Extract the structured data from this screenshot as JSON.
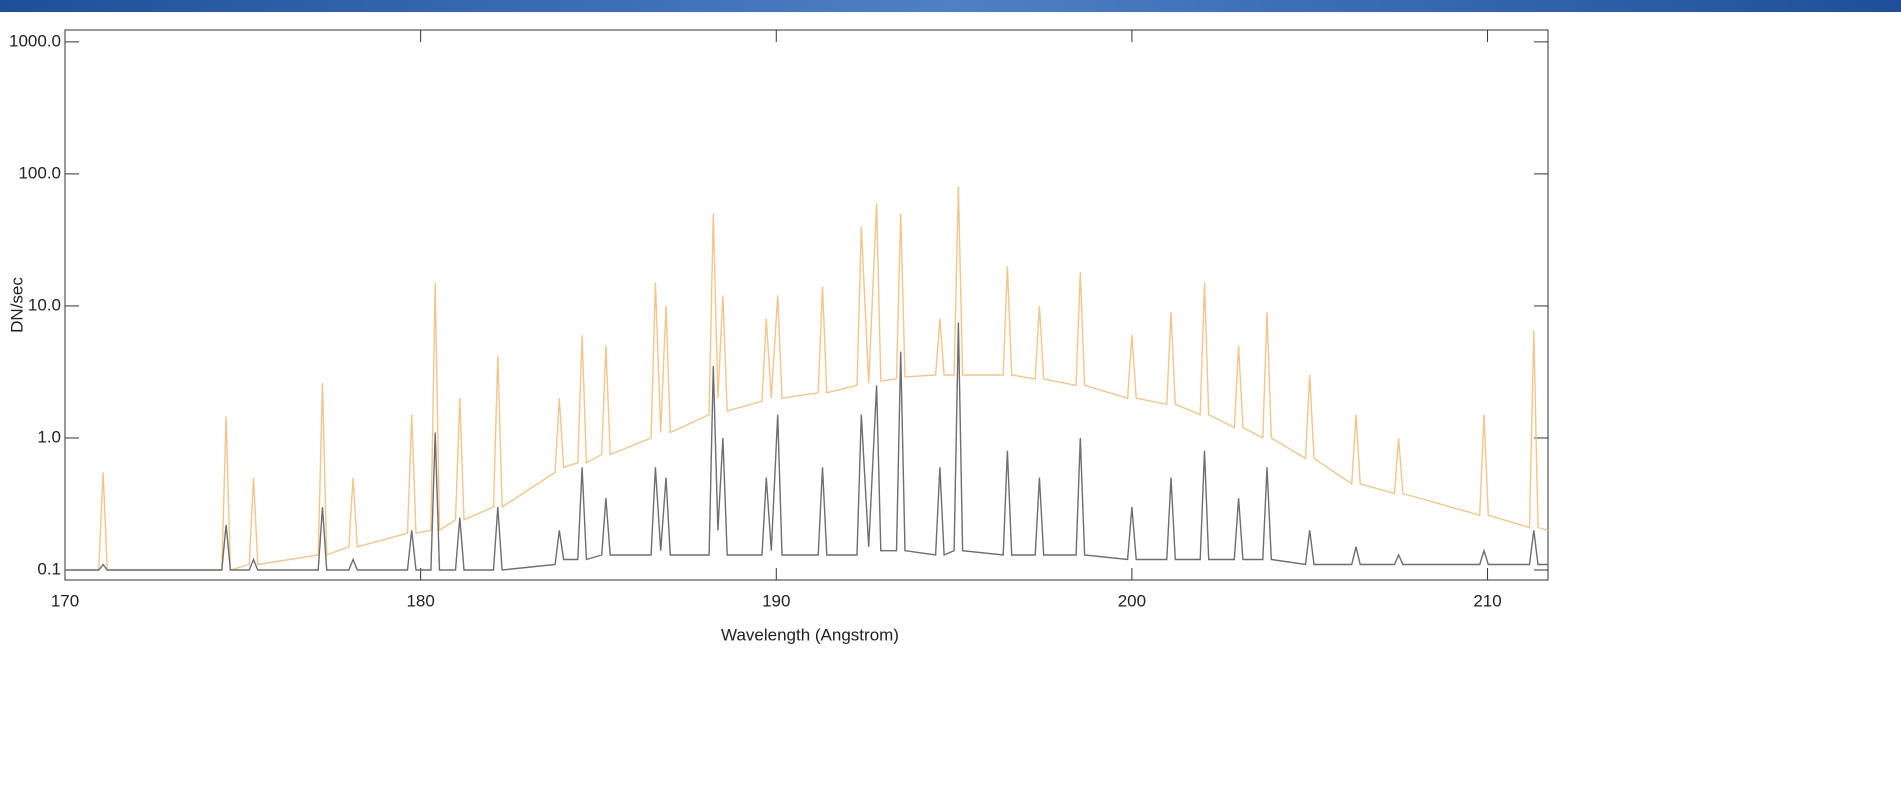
{
  "chart_data": {
    "type": "line",
    "xlabel": "Wavelength (Angstrom)",
    "ylabel": "DN/sec",
    "xlim": [
      170,
      211.7
    ],
    "ylim": [
      0.084,
      1230
    ],
    "ylog": true,
    "xticks": [
      170,
      180,
      190,
      200,
      210
    ],
    "yticks": [
      {
        "value": 0.1,
        "label": "0.1"
      },
      {
        "value": 1,
        "label": "1.0"
      },
      {
        "value": 10,
        "label": "10.0"
      },
      {
        "value": 100,
        "label": "100.0"
      },
      {
        "value": 1000,
        "label": "1000.0"
      }
    ],
    "x": [
      170,
      170.95,
      171.07,
      171.19,
      174.41,
      174.53,
      174.65,
      175.18,
      175.3,
      175.42,
      177.12,
      177.24,
      177.36,
      177.98,
      178.1,
      178.22,
      179.63,
      179.75,
      179.87,
      180.29,
      180.41,
      180.53,
      180.98,
      181.1,
      181.22,
      182.05,
      182.17,
      182.29,
      183.78,
      183.9,
      184.02,
      184.42,
      184.54,
      184.66,
      185.09,
      185.21,
      185.33,
      186.48,
      186.6,
      186.75,
      186.9,
      187.02,
      188.11,
      188.23,
      188.36,
      188.5,
      188.62,
      189.6,
      189.72,
      189.86,
      190.04,
      190.16,
      191.18,
      191.3,
      191.42,
      192.27,
      192.39,
      192.6,
      192.82,
      192.94,
      193.38,
      193.5,
      193.62,
      194.48,
      194.6,
      194.72,
      195,
      195.12,
      195.24,
      196.38,
      196.5,
      196.62,
      197.28,
      197.4,
      197.52,
      198.43,
      198.55,
      198.67,
      199.88,
      200,
      200.12,
      200.98,
      201.1,
      201.22,
      201.92,
      202.04,
      202.16,
      202.88,
      203,
      203.12,
      203.68,
      203.8,
      203.92,
      204.88,
      205,
      205.12,
      206.18,
      206.3,
      206.42,
      207.38,
      207.5,
      207.62,
      209.78,
      209.9,
      210.02,
      211.18,
      211.3,
      211.42,
      211.7
    ],
    "series": [
      {
        "color": "#f2c68a",
        "values": [
          0.1,
          0.1,
          0.55,
          0.1,
          0.1,
          1.45,
          0.1,
          0.11,
          0.5,
          0.11,
          0.13,
          2.6,
          0.13,
          0.15,
          0.5,
          0.15,
          0.19,
          1.5,
          0.19,
          0.2,
          15,
          0.2,
          0.24,
          2,
          0.24,
          0.3,
          4.2,
          0.3,
          0.55,
          2,
          0.6,
          0.65,
          6,
          0.65,
          0.75,
          5,
          0.75,
          1,
          15,
          1.1,
          10,
          1.1,
          1.5,
          50,
          2,
          12,
          1.6,
          1.9,
          8,
          2,
          12,
          2,
          2.2,
          14,
          2.2,
          2.5,
          40,
          2.6,
          60,
          2.7,
          2.8,
          50,
          2.9,
          3,
          8,
          3,
          3,
          80,
          3,
          3,
          20,
          3,
          2.8,
          10,
          2.8,
          2.5,
          18,
          2.5,
          2,
          6,
          2,
          1.8,
          9,
          1.8,
          1.5,
          15,
          1.5,
          1.2,
          5,
          1.2,
          1,
          9,
          1,
          0.7,
          3,
          0.7,
          0.45,
          1.5,
          0.45,
          0.38,
          1,
          0.38,
          0.26,
          1.5,
          0.26,
          0.21,
          6.5,
          0.21,
          0.2
        ]
      },
      {
        "color": "#6e6e6e",
        "values": [
          0.1,
          0.1,
          0.11,
          0.1,
          0.1,
          0.22,
          0.1,
          0.1,
          0.12,
          0.1,
          0.1,
          0.3,
          0.1,
          0.1,
          0.12,
          0.1,
          0.1,
          0.2,
          0.1,
          0.1,
          1.1,
          0.1,
          0.1,
          0.25,
          0.1,
          0.1,
          0.3,
          0.1,
          0.11,
          0.2,
          0.12,
          0.12,
          0.6,
          0.12,
          0.13,
          0.35,
          0.13,
          0.13,
          0.6,
          0.14,
          0.5,
          0.13,
          0.13,
          3.5,
          0.2,
          1,
          0.13,
          0.13,
          0.5,
          0.14,
          1.5,
          0.13,
          0.13,
          0.6,
          0.13,
          0.13,
          1.5,
          0.15,
          2.5,
          0.14,
          0.14,
          4.5,
          0.14,
          0.13,
          0.6,
          0.13,
          0.14,
          7.5,
          0.14,
          0.13,
          0.8,
          0.13,
          0.13,
          0.5,
          0.13,
          0.13,
          1,
          0.13,
          0.12,
          0.3,
          0.12,
          0.12,
          0.5,
          0.12,
          0.12,
          0.8,
          0.12,
          0.12,
          0.35,
          0.12,
          0.12,
          0.6,
          0.12,
          0.11,
          0.2,
          0.11,
          0.11,
          0.15,
          0.11,
          0.11,
          0.13,
          0.11,
          0.11,
          0.14,
          0.11,
          0.11,
          0.2,
          0.11,
          0.11
        ]
      }
    ]
  }
}
